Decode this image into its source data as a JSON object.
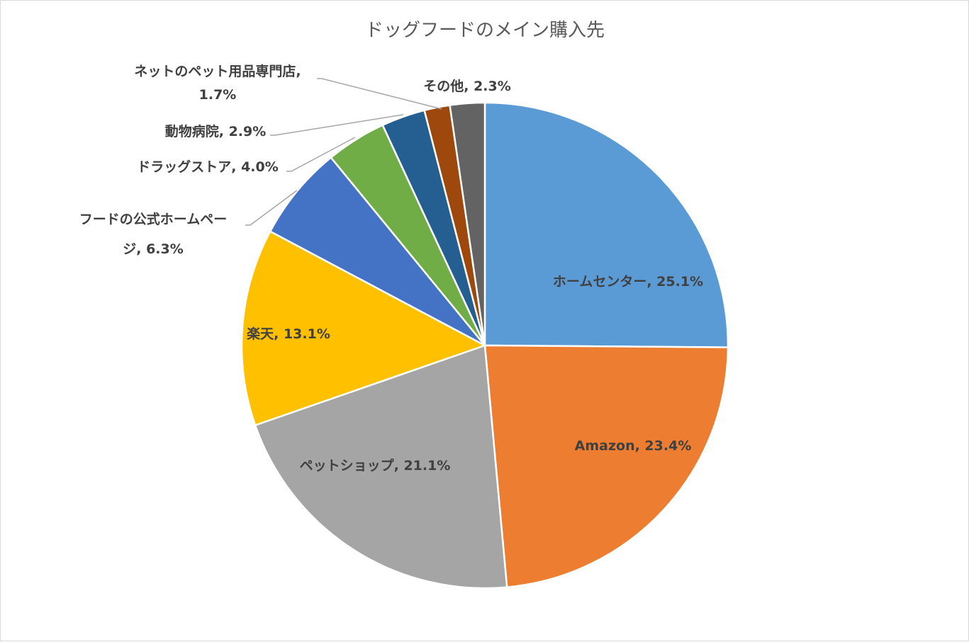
{
  "chart_data": {
    "type": "pie",
    "title": "ドッグフードのメイン購入先",
    "slices": [
      {
        "label": "ホームセンター",
        "value": 25.1,
        "data_label": "ホームセンター, 25.1%",
        "color": "#5B9BD5"
      },
      {
        "label": "Amazon",
        "value": 23.4,
        "data_label": "Amazon, 23.4%",
        "color": "#ED7D31"
      },
      {
        "label": "ペットショップ",
        "value": 21.1,
        "data_label": "ペットショップ, 21.1%",
        "color": "#A5A5A5"
      },
      {
        "label": "楽天",
        "value": 13.1,
        "data_label": "楽天, 13.1%",
        "color": "#FFC000"
      },
      {
        "label": "フードの公式ホームページ",
        "value": 6.3,
        "data_label_lines": [
          "フードの公式ホームペー",
          "ジ, 6.3%"
        ],
        "color": "#4472C4"
      },
      {
        "label": "ドラッグストア",
        "value": 4.0,
        "data_label": "ドラッグストア, 4.0%",
        "color": "#70AD47"
      },
      {
        "label": "動物病院",
        "value": 2.9,
        "data_label": "動物病院, 2.9%",
        "color": "#255E91"
      },
      {
        "label": "ネットのペット用品専門店",
        "value": 1.7,
        "data_label_lines": [
          "ネットのペット用品専門店,",
          "1.7%"
        ],
        "color": "#9E480E"
      },
      {
        "label": "その他",
        "value": 2.3,
        "data_label": "その他, 2.3%",
        "color": "#636363"
      }
    ],
    "start_angle_deg": 0,
    "direction": "clockwise",
    "legend": "none"
  }
}
